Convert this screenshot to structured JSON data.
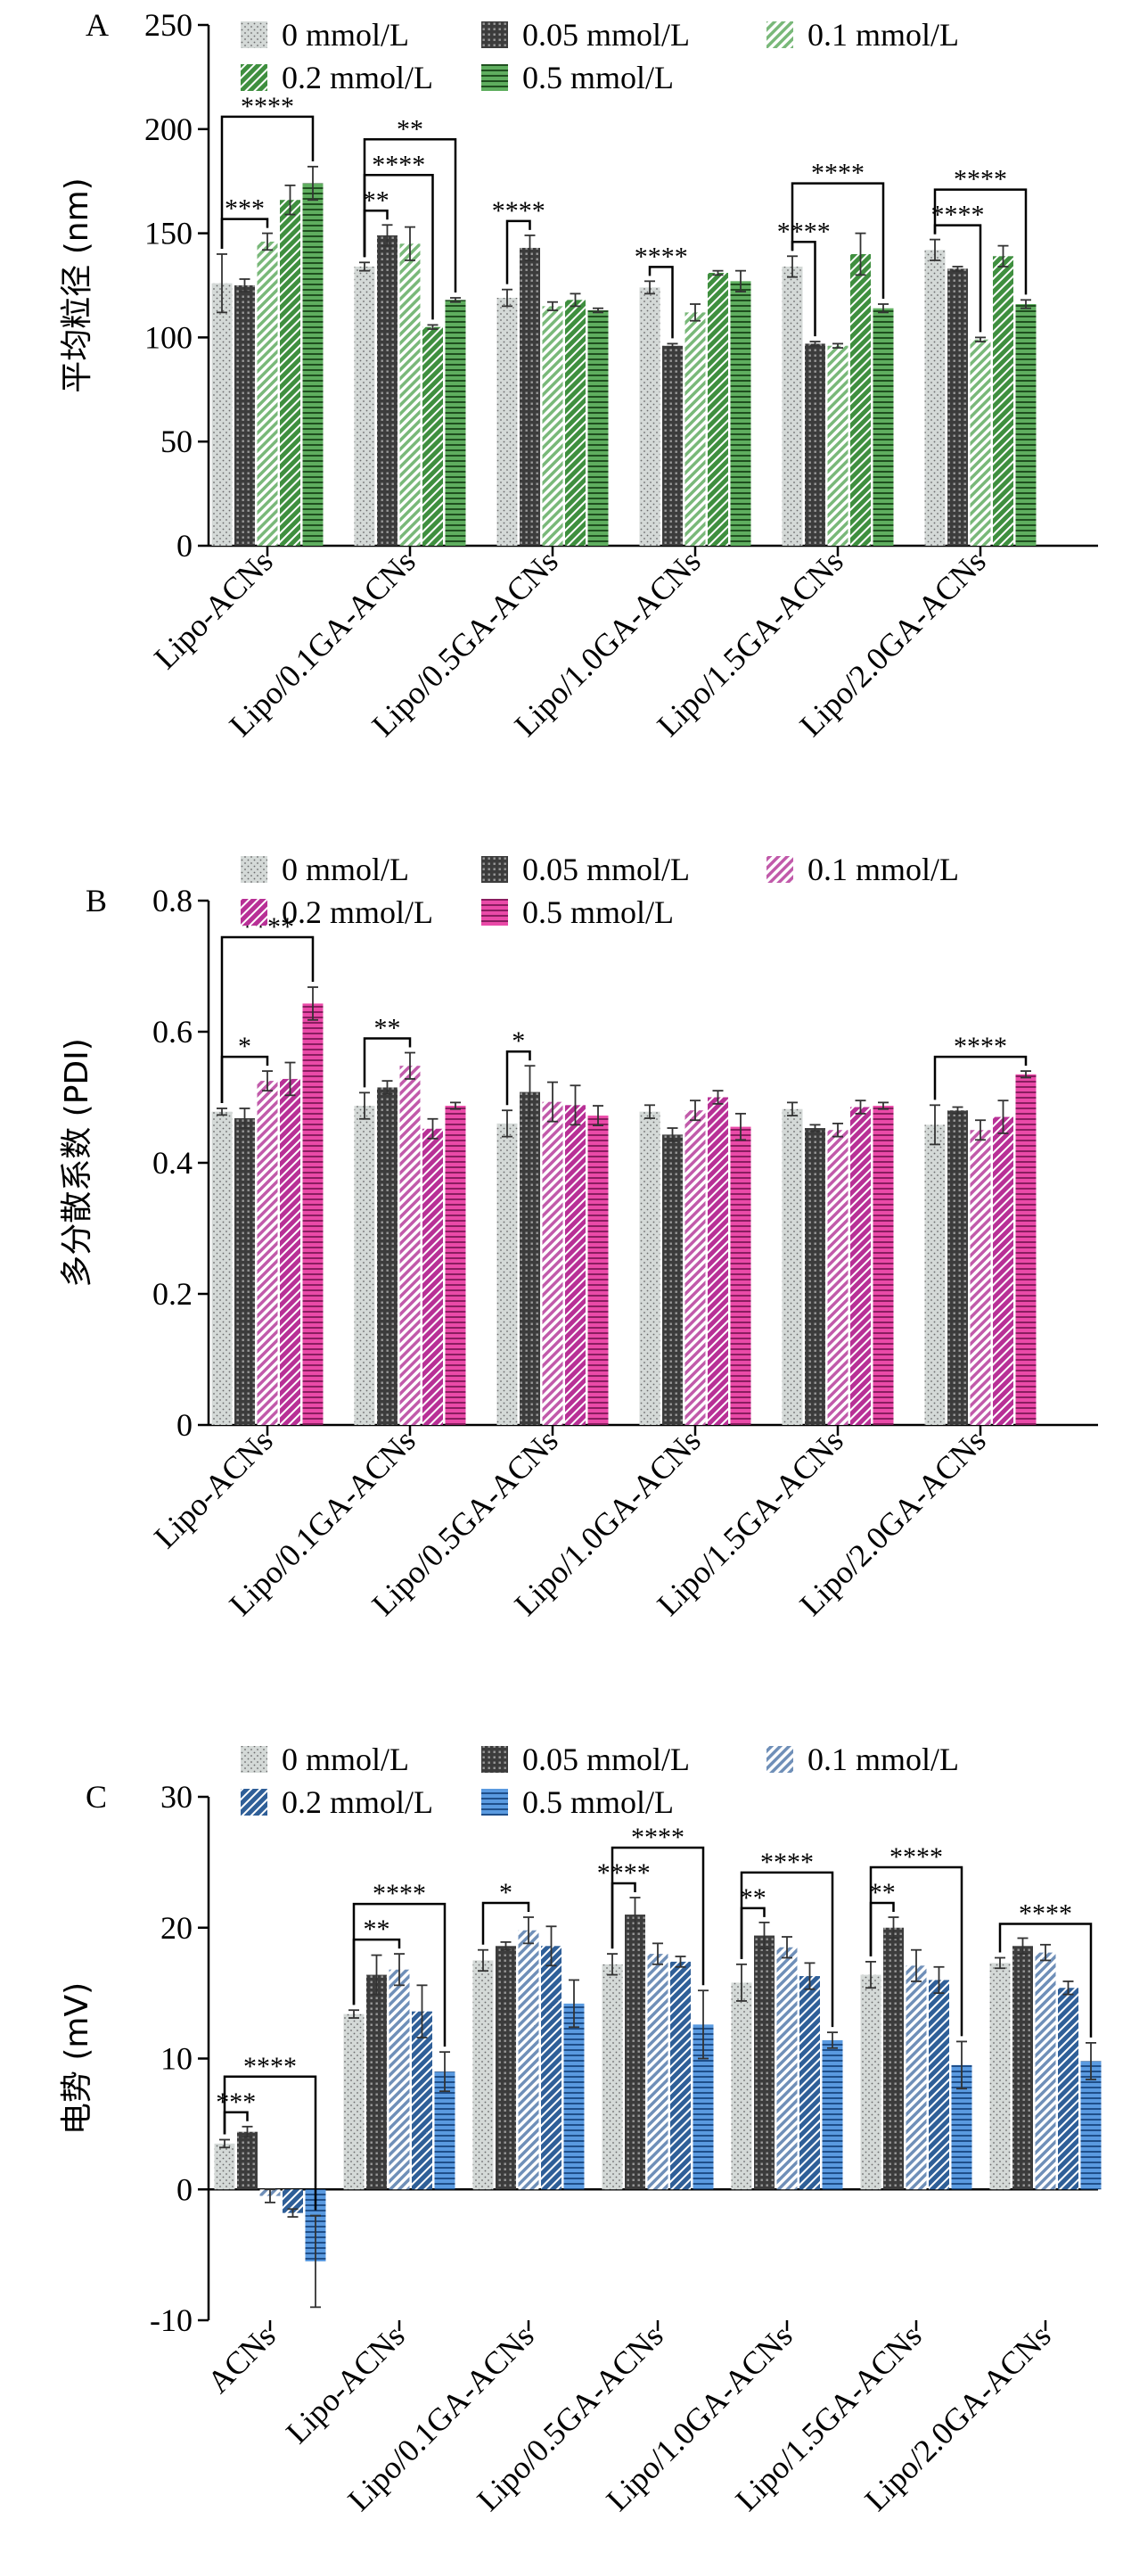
{
  "chart_data": [
    {
      "panel_label": "A",
      "type": "bar",
      "ylabel": "平均粒径 (nm)",
      "ylim": [
        0,
        250
      ],
      "yticks": [
        0,
        50,
        100,
        150,
        200,
        250
      ],
      "categories": [
        "Lipo-ACNs",
        "Lipo/0.1GA-ACNs",
        "Lipo/0.5GA-ACNs",
        "Lipo/1.0GA-ACNs",
        "Lipo/1.5GA-ACNs",
        "Lipo/2.0GA-ACNs"
      ],
      "series": [
        {
          "name": "0 mmol/L",
          "values": [
            126,
            134,
            119,
            124,
            134,
            142
          ],
          "errors": [
            14,
            2,
            4,
            3,
            5,
            5
          ]
        },
        {
          "name": "0.05 mmol/L",
          "values": [
            125,
            149,
            143,
            96,
            97,
            133
          ],
          "errors": [
            3,
            5,
            6,
            1,
            1,
            1
          ]
        },
        {
          "name": "0.1 mmol/L",
          "values": [
            146,
            145,
            115,
            112,
            96,
            99
          ],
          "errors": [
            4,
            8,
            2,
            4,
            1,
            1
          ]
        },
        {
          "name": "0.2 mmol/L",
          "values": [
            166,
            105,
            118,
            131,
            140,
            139
          ],
          "errors": [
            7,
            1,
            3,
            1,
            10,
            5
          ]
        },
        {
          "name": "0.5 mmol/L",
          "values": [
            174,
            118,
            113,
            127,
            114,
            116
          ],
          "errors": [
            8,
            1,
            1,
            5,
            2,
            2
          ]
        }
      ],
      "annotations": [
        {
          "category": 0,
          "from": 0,
          "to": 2,
          "text": "***"
        },
        {
          "category": 0,
          "from": 0,
          "to": 4,
          "text": "****"
        },
        {
          "category": 1,
          "from": 0,
          "to": 1,
          "text": "**"
        },
        {
          "category": 1,
          "from": 0,
          "to": 3,
          "text": "****"
        },
        {
          "category": 1,
          "from": 0,
          "to": 4,
          "text": "**"
        },
        {
          "category": 2,
          "from": 0,
          "to": 1,
          "text": "****"
        },
        {
          "category": 3,
          "from": 0,
          "to": 1,
          "text": "****"
        },
        {
          "category": 4,
          "from": 0,
          "to": 1,
          "text": "****"
        },
        {
          "category": 4,
          "from": 0,
          "to": 4,
          "text": "****"
        },
        {
          "category": 5,
          "from": 0,
          "to": 2,
          "text": "****"
        },
        {
          "category": 5,
          "from": 0,
          "to": 4,
          "text": "****"
        }
      ],
      "colors": [
        "#d3d8d6",
        "#4a4a4a",
        "#8ec98e",
        "#4f9e4f",
        "#3f8f3f"
      ],
      "legend_placement": "top"
    },
    {
      "panel_label": "B",
      "type": "bar",
      "ylabel": "多分散系数 (PDI)",
      "ylim": [
        0,
        0.8
      ],
      "yticks": [
        0,
        0.2,
        0.4,
        0.6,
        0.8
      ],
      "categories": [
        "Lipo-ACNs",
        "Lipo/0.1GA-ACNs",
        "Lipo/0.5GA-ACNs",
        "Lipo/1.0GA-ACNs",
        "Lipo/1.5GA-ACNs",
        "Lipo/2.0GA-ACNs"
      ],
      "series": [
        {
          "name": "0 mmol/L",
          "values": [
            0.478,
            0.487,
            0.46,
            0.478,
            0.482,
            0.458
          ],
          "errors": [
            0.005,
            0.02,
            0.02,
            0.01,
            0.01,
            0.03
          ]
        },
        {
          "name": "0.05 mmol/L",
          "values": [
            0.468,
            0.515,
            0.508,
            0.443,
            0.453,
            0.48
          ],
          "errors": [
            0.015,
            0.01,
            0.04,
            0.01,
            0.005,
            0.005
          ]
        },
        {
          "name": "0.1 mmol/L",
          "values": [
            0.525,
            0.548,
            0.493,
            0.48,
            0.45,
            0.45
          ],
          "errors": [
            0.015,
            0.02,
            0.03,
            0.015,
            0.01,
            0.015
          ]
        },
        {
          "name": "0.2 mmol/L",
          "values": [
            0.528,
            0.452,
            0.488,
            0.5,
            0.485,
            0.47
          ],
          "errors": [
            0.025,
            0.015,
            0.03,
            0.01,
            0.01,
            0.025
          ]
        },
        {
          "name": "0.5 mmol/L",
          "values": [
            0.643,
            0.487,
            0.472,
            0.455,
            0.487,
            0.535
          ],
          "errors": [
            0.025,
            0.005,
            0.015,
            0.02,
            0.005,
            0.005
          ]
        }
      ],
      "annotations": [
        {
          "category": 0,
          "from": 0,
          "to": 2,
          "text": "*"
        },
        {
          "category": 0,
          "from": 0,
          "to": 4,
          "text": "****"
        },
        {
          "category": 1,
          "from": 0,
          "to": 2,
          "text": "**"
        },
        {
          "category": 2,
          "from": 0,
          "to": 1,
          "text": "*"
        },
        {
          "category": 5,
          "from": 0,
          "to": 4,
          "text": "****"
        }
      ],
      "colors": [
        "#d3d8d6",
        "#4a4a4a",
        "#cf5fb4",
        "#c33a9f",
        "#e040a4"
      ],
      "legend_placement": "top"
    },
    {
      "panel_label": "C",
      "type": "bar",
      "ylabel": "电势 (mV)",
      "ylim": [
        -10,
        30
      ],
      "yticks": [
        -10,
        0,
        10,
        20,
        30
      ],
      "categories": [
        "ACNs",
        "Lipo-ACNs",
        "Lipo/0.1GA-ACNs",
        "Lipo/0.5GA-ACNs",
        "Lipo/1.0GA-ACNs",
        "Lipo/1.5GA-ACNs",
        "Lipo/2.0GA-ACNs"
      ],
      "series": [
        {
          "name": "0 mmol/L",
          "values": [
            3.5,
            13.4,
            17.5,
            17.2,
            15.8,
            16.4,
            17.3
          ],
          "errors": [
            0.3,
            0.3,
            0.8,
            0.8,
            1.4,
            1.0,
            0.4
          ]
        },
        {
          "name": "0.05 mmol/L",
          "values": [
            4.4,
            16.4,
            18.6,
            21.0,
            19.4,
            20.0,
            18.6
          ],
          "errors": [
            0.4,
            1.5,
            0.3,
            1.3,
            1.0,
            0.8,
            0.6
          ]
        },
        {
          "name": "0.1 mmol/L",
          "values": [
            -0.5,
            16.8,
            19.8,
            18.0,
            18.5,
            17.1,
            18.1
          ],
          "errors": [
            0.5,
            1.2,
            1.0,
            0.8,
            0.8,
            1.2,
            0.6
          ]
        },
        {
          "name": "0.2 mmol/L",
          "values": [
            -1.8,
            13.6,
            18.6,
            17.4,
            16.3,
            16.0,
            15.4
          ],
          "errors": [
            0.3,
            2.0,
            1.5,
            0.4,
            1.0,
            1.0,
            0.5
          ]
        },
        {
          "name": "0.5 mmol/L",
          "values": [
            -5.5,
            9.0,
            14.2,
            12.6,
            11.4,
            9.5,
            9.8
          ],
          "errors": [
            3.5,
            1.5,
            1.8,
            2.6,
            0.6,
            1.8,
            1.4
          ]
        }
      ],
      "annotations": [
        {
          "category": 0,
          "from": 0,
          "to": 1,
          "text": "***"
        },
        {
          "category": 0,
          "from": 0,
          "to": 4,
          "text": "****"
        },
        {
          "category": 1,
          "from": 0,
          "to": 2,
          "text": "**"
        },
        {
          "category": 1,
          "from": 0,
          "to": 4,
          "text": "****"
        },
        {
          "category": 2,
          "from": 0,
          "to": 2,
          "text": "*"
        },
        {
          "category": 3,
          "from": 0,
          "to": 1,
          "text": "****"
        },
        {
          "category": 3,
          "from": 0,
          "to": 4,
          "text": "****"
        },
        {
          "category": 4,
          "from": 0,
          "to": 1,
          "text": "**"
        },
        {
          "category": 4,
          "from": 0,
          "to": 4,
          "text": "****"
        },
        {
          "category": 5,
          "from": 0,
          "to": 1,
          "text": "**"
        },
        {
          "category": 5,
          "from": 0,
          "to": 4,
          "text": "****"
        },
        {
          "category": 6,
          "from": 0,
          "to": 4,
          "text": "****"
        }
      ],
      "colors": [
        "#d3d8d6",
        "#4a4a4a",
        "#8fa8c8",
        "#3f6fa8",
        "#4f8fd6"
      ],
      "legend_placement": "top"
    }
  ]
}
